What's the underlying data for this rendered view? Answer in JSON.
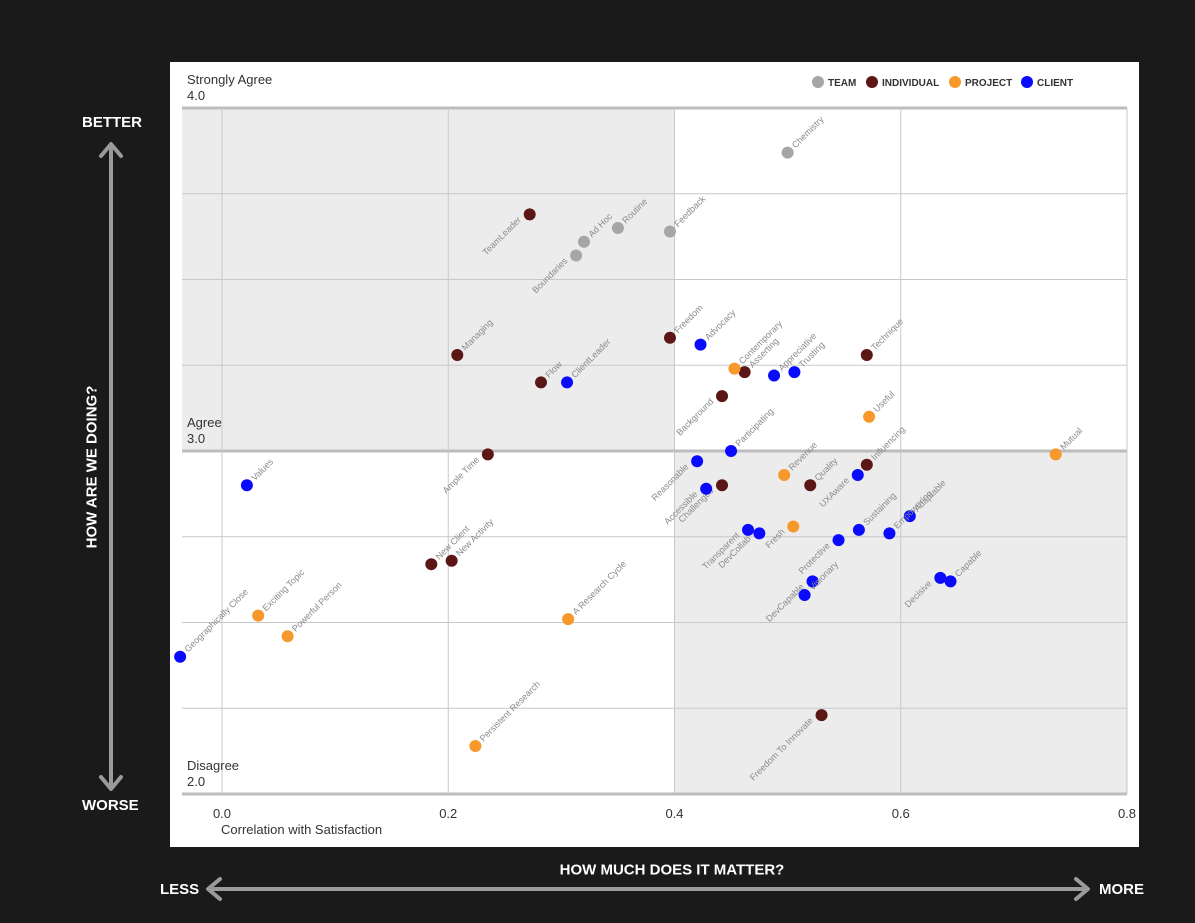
{
  "axis_ends": {
    "better": "BETTER",
    "worse": "WORSE",
    "less": "LESS",
    "more": "MORE",
    "y_title": "HOW ARE WE DOING?",
    "x_title": "HOW MUCH DOES IT MATTER?"
  },
  "colors": {
    "TEAM": "#a6a6a6",
    "INDIVIDUAL": "#5c1616",
    "PROJECT": "#f7982a",
    "CLIENT": "#0a0aff",
    "shade": "#ececec",
    "grid": "#c8c8c8",
    "label": "#8a8a8a"
  },
  "chart_data": {
    "type": "scatter",
    "xlabel": "Correlation with Satisfaction",
    "x_ticks": [
      0.0,
      0.2,
      0.4,
      0.6,
      0.8
    ],
    "x_tick_labels": [
      "0.0",
      "0.2",
      "0.4",
      "0.6",
      "0.8"
    ],
    "xlim": [
      -0.04,
      0.8
    ],
    "ylim": [
      2.0,
      4.0
    ],
    "grid": true,
    "y_annotations": [
      {
        "value": 4.0,
        "label": "Strongly Agree",
        "value_label": "4.0"
      },
      {
        "value": 3.0,
        "label": "Agree",
        "value_label": "3.0"
      },
      {
        "value": 2.0,
        "label": "Disagree",
        "value_label": "2.0"
      }
    ],
    "legend_position": "top-right",
    "series": [
      {
        "name": "TEAM",
        "points": [
          {
            "label": "Chemistry",
            "x": 0.5,
            "y": 3.87
          },
          {
            "label": "Feedback",
            "x": 0.396,
            "y": 3.64
          },
          {
            "label": "Routine",
            "x": 0.35,
            "y": 3.65
          },
          {
            "label": "Ad Hoc",
            "x": 0.32,
            "y": 3.61
          },
          {
            "label": "Boundaries",
            "x": 0.313,
            "y": 3.57
          }
        ]
      },
      {
        "name": "INDIVIDUAL",
        "points": [
          {
            "label": "TeamLeader",
            "x": 0.272,
            "y": 3.69
          },
          {
            "label": "Managing",
            "x": 0.208,
            "y": 3.28
          },
          {
            "label": "Flow",
            "x": 0.282,
            "y": 3.2
          },
          {
            "label": "Ample Time",
            "x": 0.235,
            "y": 2.99
          },
          {
            "label": "Freedom",
            "x": 0.396,
            "y": 3.33
          },
          {
            "label": "Asserting",
            "x": 0.462,
            "y": 3.23
          },
          {
            "label": "Background",
            "x": 0.442,
            "y": 3.16
          },
          {
            "label": "Technique",
            "x": 0.57,
            "y": 3.28
          },
          {
            "label": "Challenges",
            "x": 0.442,
            "y": 2.9
          },
          {
            "label": "Quality",
            "x": 0.52,
            "y": 2.9
          },
          {
            "label": "Influencing",
            "x": 0.57,
            "y": 2.96
          },
          {
            "label": "New Client",
            "x": 0.185,
            "y": 2.67
          },
          {
            "label": "New Activity",
            "x": 0.203,
            "y": 2.68
          },
          {
            "label": "Freedom To Innovate",
            "x": 0.53,
            "y": 2.23
          }
        ]
      },
      {
        "name": "PROJECT",
        "points": [
          {
            "label": "Contemporary",
            "x": 0.453,
            "y": 3.24
          },
          {
            "label": "Useful",
            "x": 0.572,
            "y": 3.1
          },
          {
            "label": "Revenue",
            "x": 0.497,
            "y": 2.93
          },
          {
            "label": "Fresh",
            "x": 0.505,
            "y": 2.78
          },
          {
            "label": "Mutual",
            "x": 0.737,
            "y": 2.99
          },
          {
            "label": "Exciting Topic",
            "x": 0.032,
            "y": 2.52
          },
          {
            "label": "Powerful Person",
            "x": 0.058,
            "y": 2.46
          },
          {
            "label": "A Research Cycle",
            "x": 0.306,
            "y": 2.51
          },
          {
            "label": "Persistent Research",
            "x": 0.224,
            "y": 2.14
          }
        ]
      },
      {
        "name": "CLIENT",
        "points": [
          {
            "label": "Values",
            "x": 0.022,
            "y": 2.9
          },
          {
            "label": "Geographically Close",
            "x": -0.037,
            "y": 2.4
          },
          {
            "label": "ClientLeader",
            "x": 0.305,
            "y": 3.2
          },
          {
            "label": "Advocacy",
            "x": 0.423,
            "y": 3.31
          },
          {
            "label": "Appreciative",
            "x": 0.488,
            "y": 3.22
          },
          {
            "label": "Trusting",
            "x": 0.506,
            "y": 3.23
          },
          {
            "label": "Participating",
            "x": 0.45,
            "y": 3.0
          },
          {
            "label": "Reasonable",
            "x": 0.42,
            "y": 2.97
          },
          {
            "label": "Accessible",
            "x": 0.428,
            "y": 2.89
          },
          {
            "label": "UXAware",
            "x": 0.562,
            "y": 2.93
          },
          {
            "label": "Adaptable",
            "x": 0.608,
            "y": 2.81
          },
          {
            "label": "Transparent",
            "x": 0.465,
            "y": 2.77
          },
          {
            "label": "DevCollab",
            "x": 0.475,
            "y": 2.76
          },
          {
            "label": "Protective",
            "x": 0.545,
            "y": 2.74
          },
          {
            "label": "Sustaining",
            "x": 0.563,
            "y": 2.77
          },
          {
            "label": "Empowering",
            "x": 0.59,
            "y": 2.76
          },
          {
            "label": "DevCapable",
            "x": 0.522,
            "y": 2.62
          },
          {
            "label": "Visionary",
            "x": 0.515,
            "y": 2.58
          },
          {
            "label": "Decisive",
            "x": 0.635,
            "y": 2.63
          },
          {
            "label": "Capable",
            "x": 0.644,
            "y": 2.62
          }
        ]
      }
    ]
  }
}
